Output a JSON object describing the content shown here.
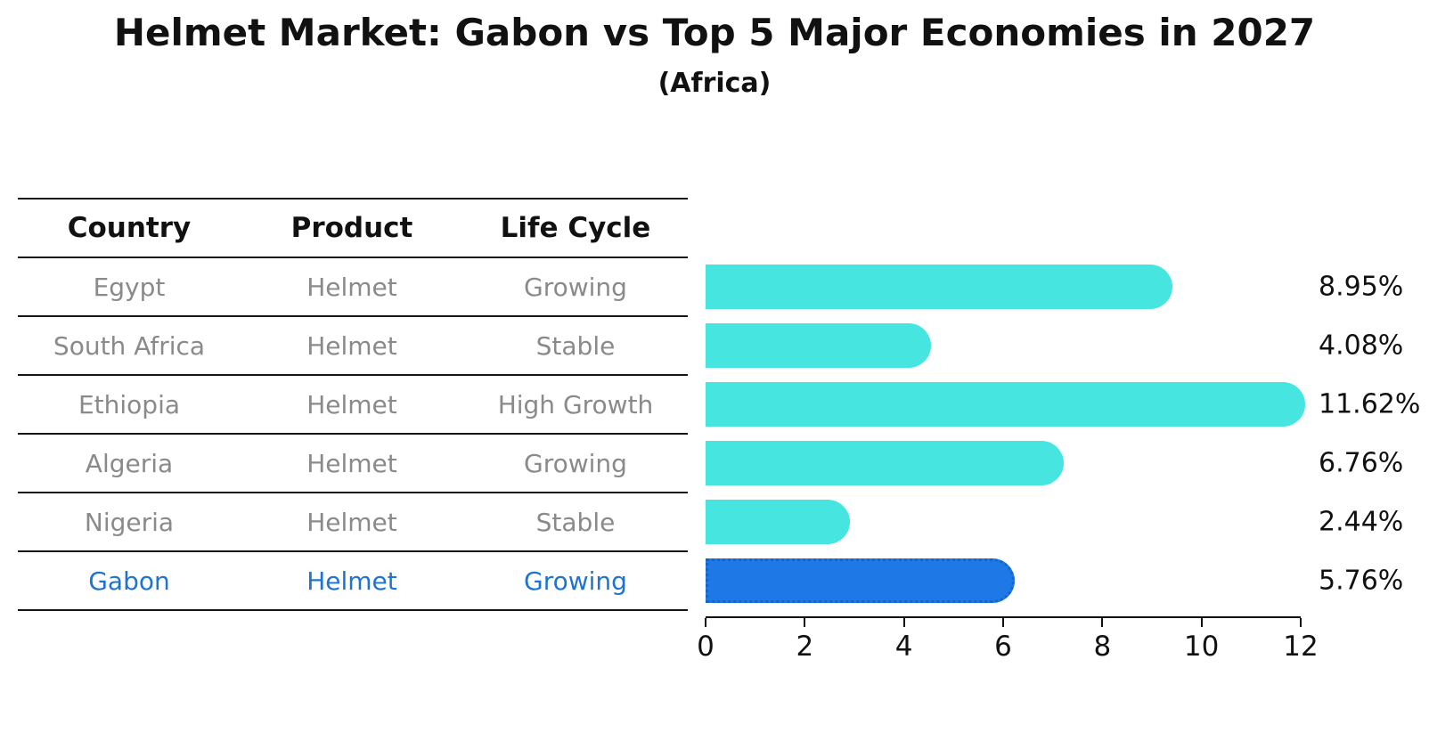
{
  "title": "Helmet Market: Gabon vs Top 5 Major Economies in 2027",
  "subtitle": "(Africa)",
  "table": {
    "headers": [
      "Country",
      "Product",
      "Life Cycle"
    ],
    "rows": [
      {
        "country": "Egypt",
        "product": "Helmet",
        "life_cycle": "Growing",
        "highlight": false
      },
      {
        "country": "South Africa",
        "product": "Helmet",
        "life_cycle": "Stable",
        "highlight": false
      },
      {
        "country": "Ethiopia",
        "product": "Helmet",
        "life_cycle": "High Growth",
        "highlight": false
      },
      {
        "country": "Algeria",
        "product": "Helmet",
        "life_cycle": "Growing",
        "highlight": false
      },
      {
        "country": "Nigeria",
        "product": "Helmet",
        "life_cycle": "Stable",
        "highlight": false
      },
      {
        "country": "Gabon",
        "product": "Helmet",
        "life_cycle": "Growing",
        "highlight": true
      }
    ]
  },
  "chart_data": {
    "type": "bar",
    "orientation": "horizontal",
    "title": "Helmet Market: Gabon vs Top 5 Major Economies in 2027",
    "subtitle": "(Africa)",
    "categories": [
      "Egypt",
      "South Africa",
      "Ethiopia",
      "Algeria",
      "Nigeria",
      "Gabon"
    ],
    "values": [
      8.95,
      4.08,
      11.62,
      6.76,
      2.44,
      5.76
    ],
    "labels": [
      "8.95%",
      "4.08%",
      "11.62%",
      "6.76%",
      "2.44%",
      "5.76%"
    ],
    "highlight_index": 5,
    "x_ticks": [
      0,
      2,
      4,
      6,
      8,
      10,
      12
    ],
    "xlim": [
      0,
      12
    ],
    "xlabel": "",
    "ylabel": "",
    "grid": false,
    "legend": false
  },
  "colors": {
    "bar_fill": "#46E5DF",
    "highlight_bar_fill": "#1E78E6",
    "highlight_bar_dots": "#1565C8",
    "highlight_text": "#1E74D0",
    "row_text": "#8A8A8A",
    "heading_text": "#111111",
    "axis": "#111111"
  }
}
